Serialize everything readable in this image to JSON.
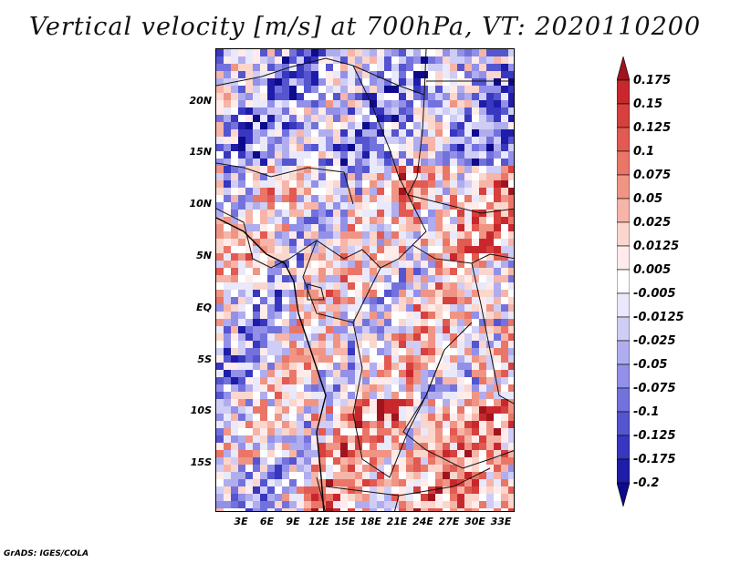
{
  "title": "Vertical velocity [m/s] at 700hPa, VT: 2020110200",
  "credit": "GrADS: IGES/COLA",
  "map": {
    "lat_ticks": [
      "20N",
      "15N",
      "10N",
      "5N",
      "EQ",
      "5S",
      "10S",
      "15S"
    ],
    "lon_ticks": [
      "3E",
      "6E",
      "9E",
      "12E",
      "15E",
      "18E",
      "21E",
      "24E",
      "27E",
      "30E",
      "33E"
    ]
  },
  "colorbar": {
    "labels": [
      "0.175",
      "0.15",
      "0.125",
      "0.1",
      "0.075",
      "0.05",
      "0.025",
      "0.0125",
      "0.005",
      "-0.005",
      "-0.0125",
      "-0.025",
      "-0.05",
      "-0.075",
      "-0.1",
      "-0.125",
      "-0.175",
      "-0.2"
    ],
    "colors": [
      "#a0141e",
      "#c8282d",
      "#d6403d",
      "#e25a52",
      "#ea7668",
      "#f09585",
      "#f6b5a8",
      "#fbd6cc",
      "#ffecea",
      "#ffffff",
      "#e9e9fb",
      "#cfcdf6",
      "#b0adef",
      "#9290e8",
      "#7372dd",
      "#5555d0",
      "#3837bf",
      "#1e1ca8",
      "#0e0a8c"
    ]
  }
}
